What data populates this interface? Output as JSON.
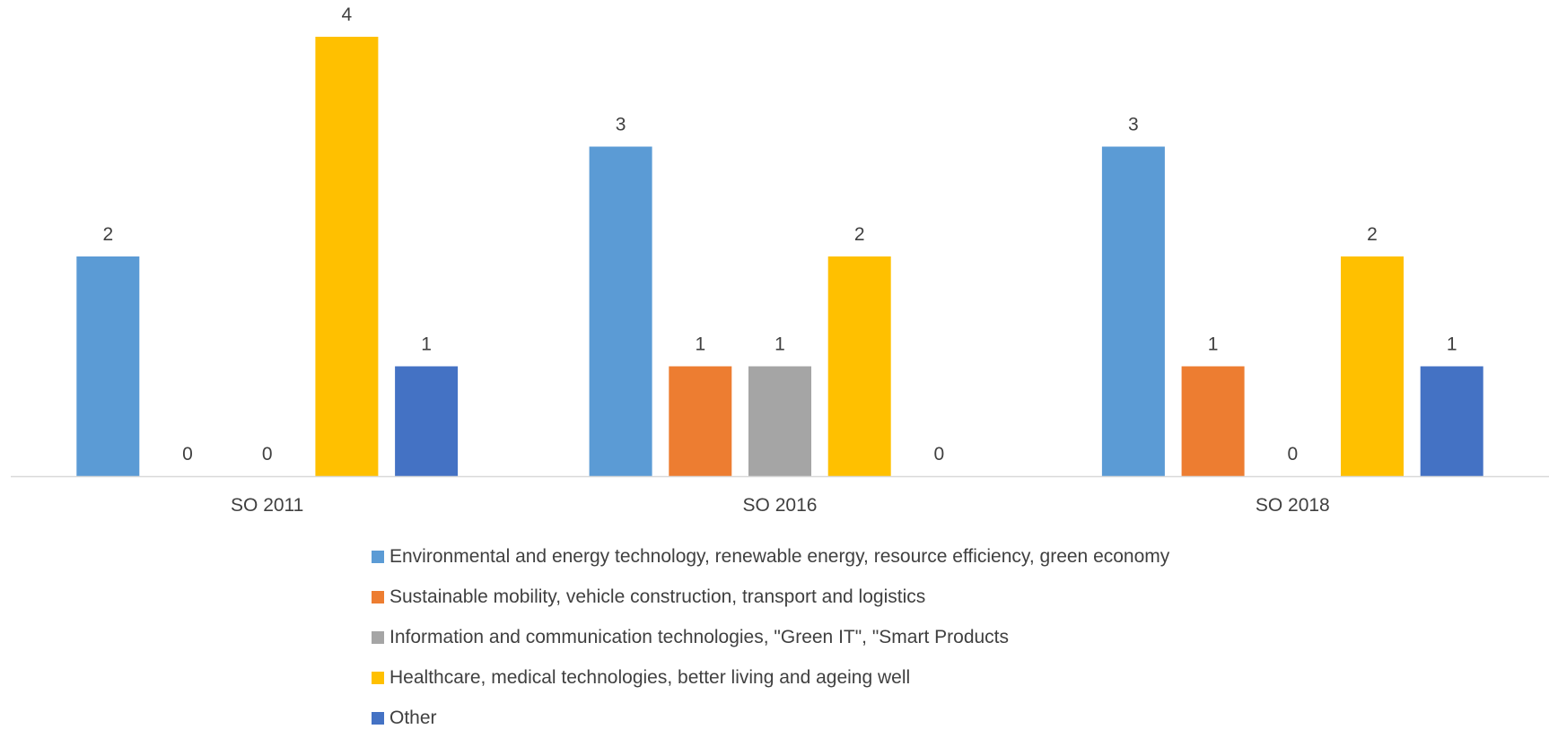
{
  "chart_data": {
    "type": "bar",
    "categories": [
      "SO 2011",
      "SO 2016",
      "SO 2018"
    ],
    "series": [
      {
        "name": "Environmental and energy technology, renewable energy, resource efficiency, green economy",
        "color": "#5B9BD5",
        "values": [
          2,
          3,
          3
        ]
      },
      {
        "name": "Sustainable mobility, vehicle construction, transport and logistics",
        "color": "#ED7D31",
        "values": [
          0,
          1,
          1
        ]
      },
      {
        "name": "Information and communication technologies, \"Green IT\", \"Smart Products",
        "color": "#A5A5A5",
        "values": [
          0,
          1,
          0
        ]
      },
      {
        "name": "Healthcare, medical technologies, better living and ageing well",
        "color": "#FFC000",
        "values": [
          4,
          2,
          2
        ]
      },
      {
        "name": "Other",
        "color": "#4472C4",
        "values": [
          1,
          0,
          1
        ]
      }
    ],
    "ylim": [
      0,
      4
    ],
    "grid": false,
    "data_labels": true,
    "legend_position": "bottom"
  }
}
